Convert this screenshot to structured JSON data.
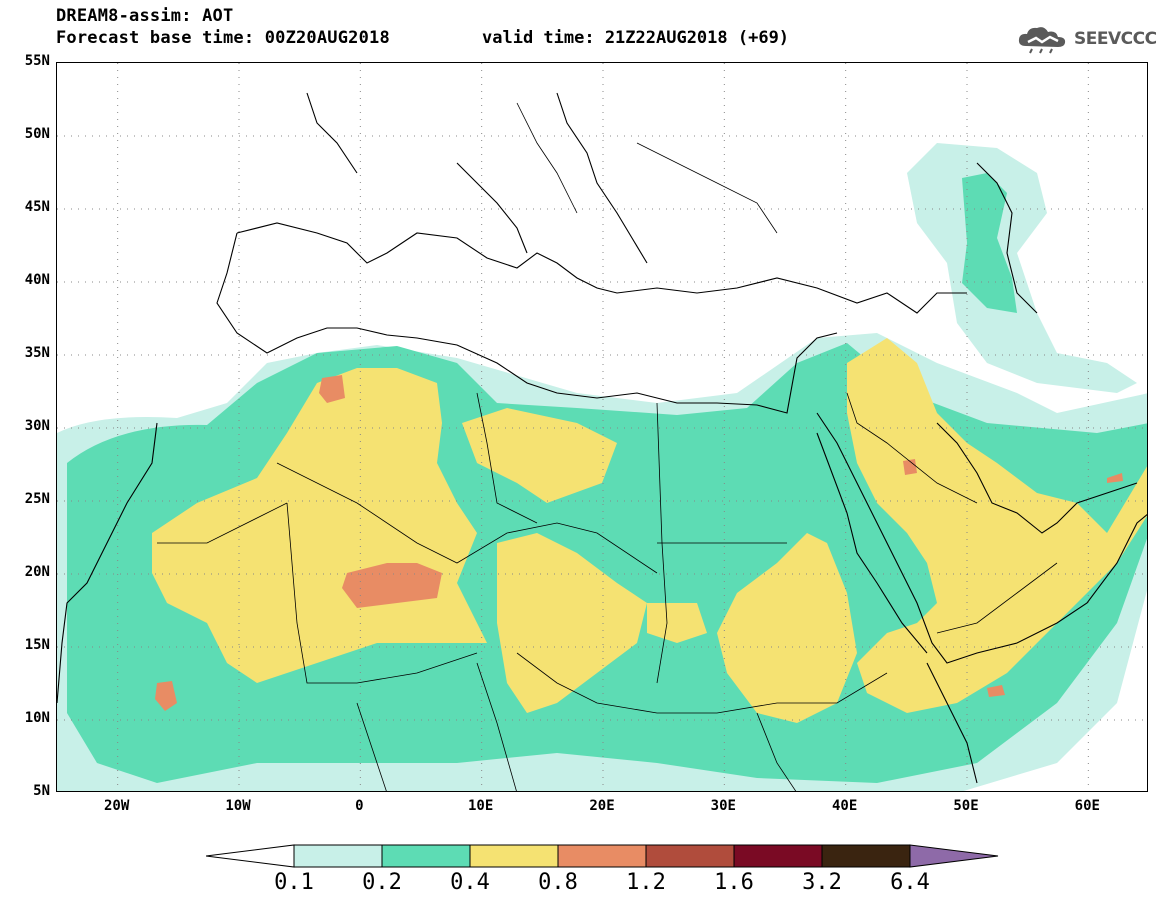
{
  "header": {
    "title_line1": "DREAM8-assim: AOT",
    "title_line2": "Forecast base time: 00Z20AUG2018",
    "valid_time": "valid time: 21Z22AUG2018 (+69)",
    "logo_text": "SEEVCCC"
  },
  "axes": {
    "lat_labels": [
      "55N",
      "50N",
      "45N",
      "40N",
      "35N",
      "30N",
      "25N",
      "20N",
      "15N",
      "10N",
      "5N"
    ],
    "lon_labels": [
      "20W",
      "10W",
      "0",
      "10E",
      "20E",
      "30E",
      "40E",
      "50E",
      "60E"
    ],
    "lat_range": [
      5,
      55
    ],
    "lon_range": [
      -25,
      65
    ]
  },
  "legend": {
    "levels": [
      "0.1",
      "0.2",
      "0.4",
      "0.8",
      "1.2",
      "1.6",
      "3.2",
      "6.4"
    ],
    "colors": [
      "#c8f0e8",
      "#5ddcb4",
      "#f5e272",
      "#e88c64",
      "#b04c3c",
      "#7a0a24",
      "#3a2410",
      "#8e6aa8"
    ]
  },
  "colors": {
    "land": "#ffffff",
    "border": "#000000",
    "grid": "#888888"
  }
}
